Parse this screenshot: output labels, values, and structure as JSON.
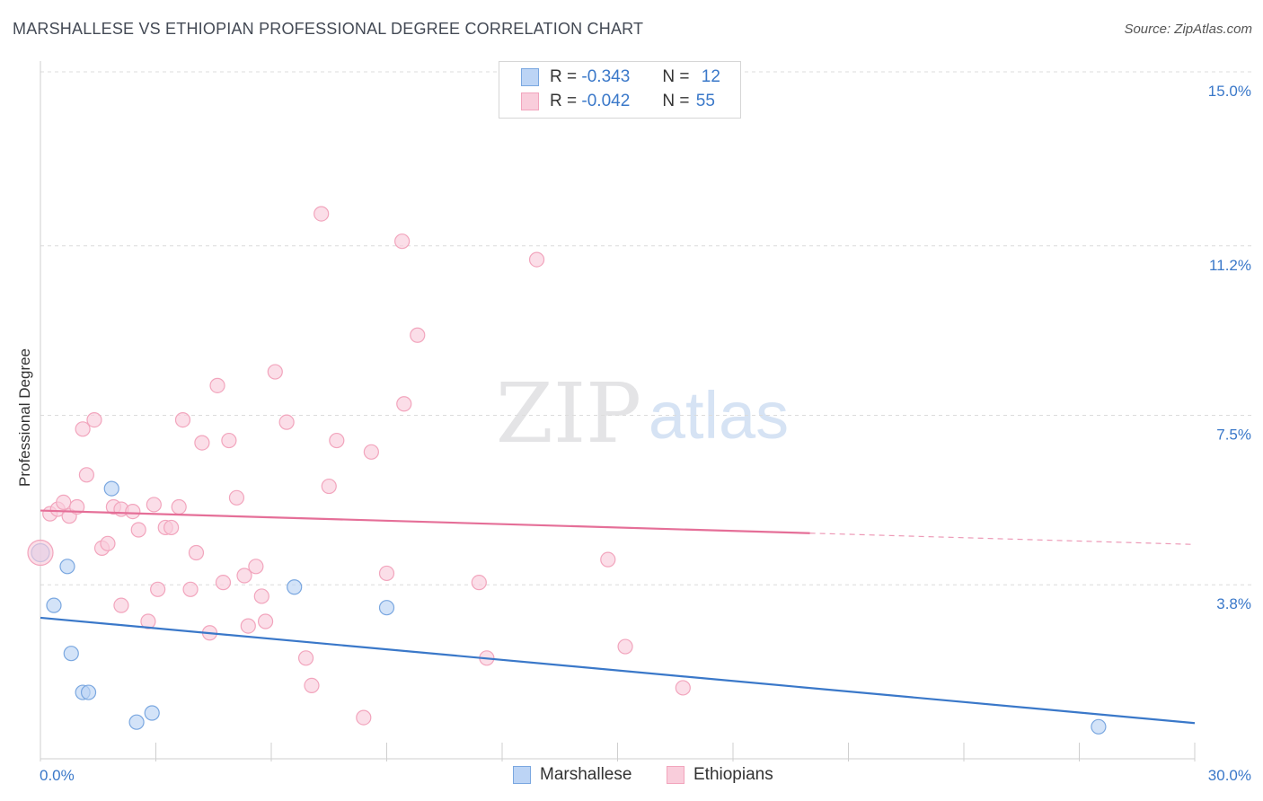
{
  "title": "MARSHALLESE VS ETHIOPIAN PROFESSIONAL DEGREE CORRELATION CHART",
  "source": "Source: ZipAtlas.com",
  "watermark": {
    "zip": "ZIP",
    "atlas": "atlas"
  },
  "legend": {
    "r_label": "R =",
    "n_label": "N =",
    "rows": [
      {
        "r": "-0.343",
        "n": "12",
        "fill": "#bcd4f5",
        "stroke": "#7aa7e0"
      },
      {
        "r": "-0.042",
        "n": "55",
        "fill": "#f9cddb",
        "stroke": "#f2a5bd"
      }
    ]
  },
  "chart_data": {
    "type": "scatter",
    "xlabel": "",
    "ylabel": "Professional Degree",
    "xlim": [
      0,
      30
    ],
    "ylim": [
      0,
      15
    ],
    "x_ticks": [
      "0.0%",
      "30.0%"
    ],
    "y_ticks": [
      {
        "value": 3.8,
        "label": "3.8%"
      },
      {
        "value": 7.5,
        "label": "7.5%"
      },
      {
        "value": 11.2,
        "label": "11.2%"
      },
      {
        "value": 15.0,
        "label": "15.0%"
      }
    ],
    "series": [
      {
        "name": "Marshallese",
        "color": "#3a78c9",
        "fill": "#bcd4f5",
        "stroke": "#7aa7e0",
        "points": [
          [
            0.0,
            4.5
          ],
          [
            0.35,
            3.35
          ],
          [
            0.7,
            4.2
          ],
          [
            0.8,
            2.3
          ],
          [
            1.1,
            1.45
          ],
          [
            1.25,
            1.45
          ],
          [
            1.85,
            5.9
          ],
          [
            2.5,
            0.8
          ],
          [
            2.9,
            1.0
          ],
          [
            6.6,
            3.75
          ],
          [
            9.0,
            3.3
          ],
          [
            27.5,
            0.7
          ]
        ],
        "trend": {
          "x": [
            0,
            30
          ],
          "y": [
            3.08,
            0.78
          ],
          "dash_from": null
        }
      },
      {
        "name": "Ethiopians",
        "color": "#e56f98",
        "fill": "#f9cddb",
        "stroke": "#f2a5bd",
        "points": [
          [
            0.0,
            4.5
          ],
          [
            0.25,
            5.35
          ],
          [
            0.45,
            5.45
          ],
          [
            0.6,
            5.6
          ],
          [
            0.75,
            5.3
          ],
          [
            0.95,
            5.5
          ],
          [
            1.1,
            7.2
          ],
          [
            1.2,
            6.2
          ],
          [
            1.4,
            7.4
          ],
          [
            1.6,
            4.6
          ],
          [
            1.75,
            4.7
          ],
          [
            1.9,
            5.5
          ],
          [
            2.1,
            5.45
          ],
          [
            2.4,
            5.4
          ],
          [
            2.55,
            5.0
          ],
          [
            2.1,
            3.35
          ],
          [
            2.8,
            3.0
          ],
          [
            2.95,
            5.55
          ],
          [
            3.05,
            3.7
          ],
          [
            3.25,
            5.05
          ],
          [
            3.4,
            5.05
          ],
          [
            3.6,
            5.5
          ],
          [
            3.7,
            7.4
          ],
          [
            3.9,
            3.7
          ],
          [
            4.05,
            4.5
          ],
          [
            4.2,
            6.9
          ],
          [
            4.4,
            2.75
          ],
          [
            4.6,
            8.15
          ],
          [
            4.75,
            3.85
          ],
          [
            4.9,
            6.95
          ],
          [
            5.1,
            5.7
          ],
          [
            5.3,
            4.0
          ],
          [
            5.4,
            2.9
          ],
          [
            5.6,
            4.2
          ],
          [
            5.75,
            3.55
          ],
          [
            5.85,
            3.0
          ],
          [
            6.1,
            8.45
          ],
          [
            6.4,
            7.35
          ],
          [
            6.9,
            2.2
          ],
          [
            7.05,
            1.6
          ],
          [
            7.3,
            11.9
          ],
          [
            7.5,
            5.95
          ],
          [
            7.7,
            6.95
          ],
          [
            8.4,
            0.9
          ],
          [
            8.6,
            6.7
          ],
          [
            9.0,
            4.05
          ],
          [
            9.4,
            11.3
          ],
          [
            9.45,
            7.75
          ],
          [
            9.8,
            9.25
          ],
          [
            11.4,
            3.85
          ],
          [
            11.6,
            2.2
          ],
          [
            12.9,
            10.9
          ],
          [
            14.75,
            4.35
          ],
          [
            15.2,
            2.45
          ],
          [
            16.7,
            1.55
          ]
        ],
        "trend": {
          "x": [
            0,
            30
          ],
          "y": [
            5.42,
            4.68
          ],
          "dash_from": 20
        }
      }
    ]
  }
}
